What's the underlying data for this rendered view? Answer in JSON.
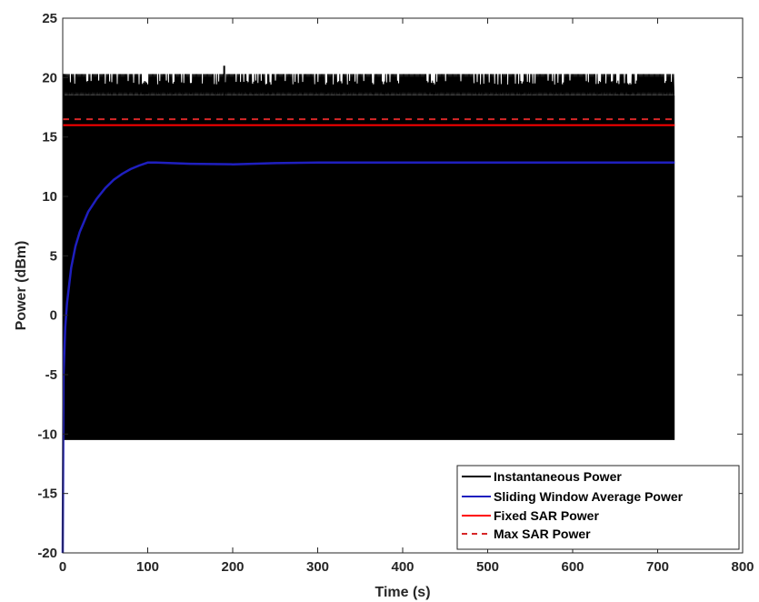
{
  "chart_data": {
    "type": "line",
    "xlabel": "Time (s)",
    "ylabel": "Power (dBm)",
    "xlim": [
      0,
      800
    ],
    "ylim": [
      -20,
      25
    ],
    "xticks": [
      0,
      100,
      200,
      300,
      400,
      500,
      600,
      700,
      800
    ],
    "yticks": [
      -20,
      -15,
      -10,
      -5,
      0,
      5,
      10,
      15,
      20,
      25
    ],
    "grid": false,
    "legend_position": "bottom-right",
    "series": [
      {
        "name": "Instantaneous Power",
        "color": "#000000",
        "style": "solid",
        "kind": "band",
        "x_range": [
          0,
          720
        ],
        "low": -10.5,
        "high": 20.3,
        "upper_envelope_min": 18.5,
        "peak": {
          "x": 190,
          "y": 21
        }
      },
      {
        "name": "Sliding Window Average Power",
        "color": "#1f1fbf",
        "style": "solid",
        "x": [
          0,
          1,
          3,
          5,
          10,
          15,
          20,
          30,
          40,
          50,
          60,
          70,
          80,
          90,
          100,
          110,
          150,
          200,
          250,
          300,
          400,
          500,
          600,
          720
        ],
        "y": [
          -20,
          -5,
          -1,
          1,
          4,
          5.8,
          7,
          8.7,
          9.8,
          10.7,
          11.4,
          11.9,
          12.3,
          12.6,
          12.85,
          12.85,
          12.75,
          12.7,
          12.8,
          12.85,
          12.85,
          12.85,
          12.85,
          12.85
        ]
      },
      {
        "name": "Fixed SAR Power",
        "color": "#ff0000",
        "style": "solid",
        "x": [
          0,
          720
        ],
        "y": [
          16,
          16
        ]
      },
      {
        "name": "Max SAR Power",
        "color": "#d62728",
        "style": "dashed",
        "x": [
          0,
          720
        ],
        "y": [
          16.5,
          16.5
        ]
      }
    ]
  }
}
